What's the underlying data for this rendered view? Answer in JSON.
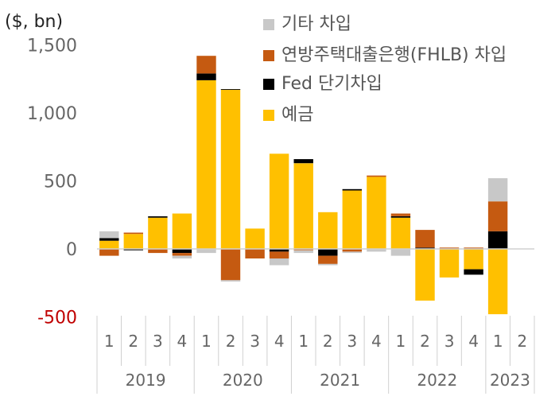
{
  "chart_data": {
    "type": "bar",
    "stacked": true,
    "unit_label": "($, bn)",
    "title": "",
    "xlabel": "",
    "ylabel": "",
    "ylim": [
      -500,
      1500
    ],
    "yticks": [
      "1,500",
      "1,000",
      "500",
      "0",
      "-500"
    ],
    "ytick_values": [
      1500,
      1000,
      500,
      0,
      -500
    ],
    "negative_tick_color": "#c00000",
    "grid": false,
    "legend_position": "top-right",
    "categories": [
      "1",
      "2",
      "3",
      "4",
      "1",
      "2",
      "3",
      "4",
      "1",
      "2",
      "3",
      "4",
      "1",
      "2",
      "3",
      "4",
      "1",
      "2"
    ],
    "year_groups": [
      {
        "label": "2019",
        "count": 4
      },
      {
        "label": "2020",
        "count": 4
      },
      {
        "label": "2021",
        "count": 4
      },
      {
        "label": "2022",
        "count": 4
      },
      {
        "label": "2023",
        "count": 2
      }
    ],
    "series": [
      {
        "name": "기타 차입",
        "color": "#c8c8c8",
        "values": [
          50,
          0,
          0,
          -20,
          -30,
          -10,
          0,
          -50,
          -20,
          -10,
          -10,
          -20,
          -50,
          0,
          0,
          0,
          170,
          0
        ]
      },
      {
        "name": "연방주택대출은행(FHLB) 차입",
        "color": "#c55a11",
        "values": [
          -50,
          10,
          -30,
          -20,
          130,
          -230,
          -70,
          -50,
          -10,
          -60,
          -20,
          10,
          20,
          130,
          10,
          10,
          220,
          0
        ]
      },
      {
        "name": "Fed 단기차입",
        "color": "#000000",
        "values": [
          20,
          -10,
          10,
          -30,
          50,
          5,
          0,
          -20,
          30,
          -50,
          10,
          0,
          10,
          10,
          0,
          -40,
          130,
          0
        ]
      },
      {
        "name": "예금",
        "color": "#ffc000",
        "values": [
          60,
          110,
          230,
          260,
          1240,
          1170,
          150,
          700,
          630,
          270,
          430,
          530,
          230,
          -380,
          -210,
          -150,
          -480,
          0
        ]
      }
    ]
  }
}
